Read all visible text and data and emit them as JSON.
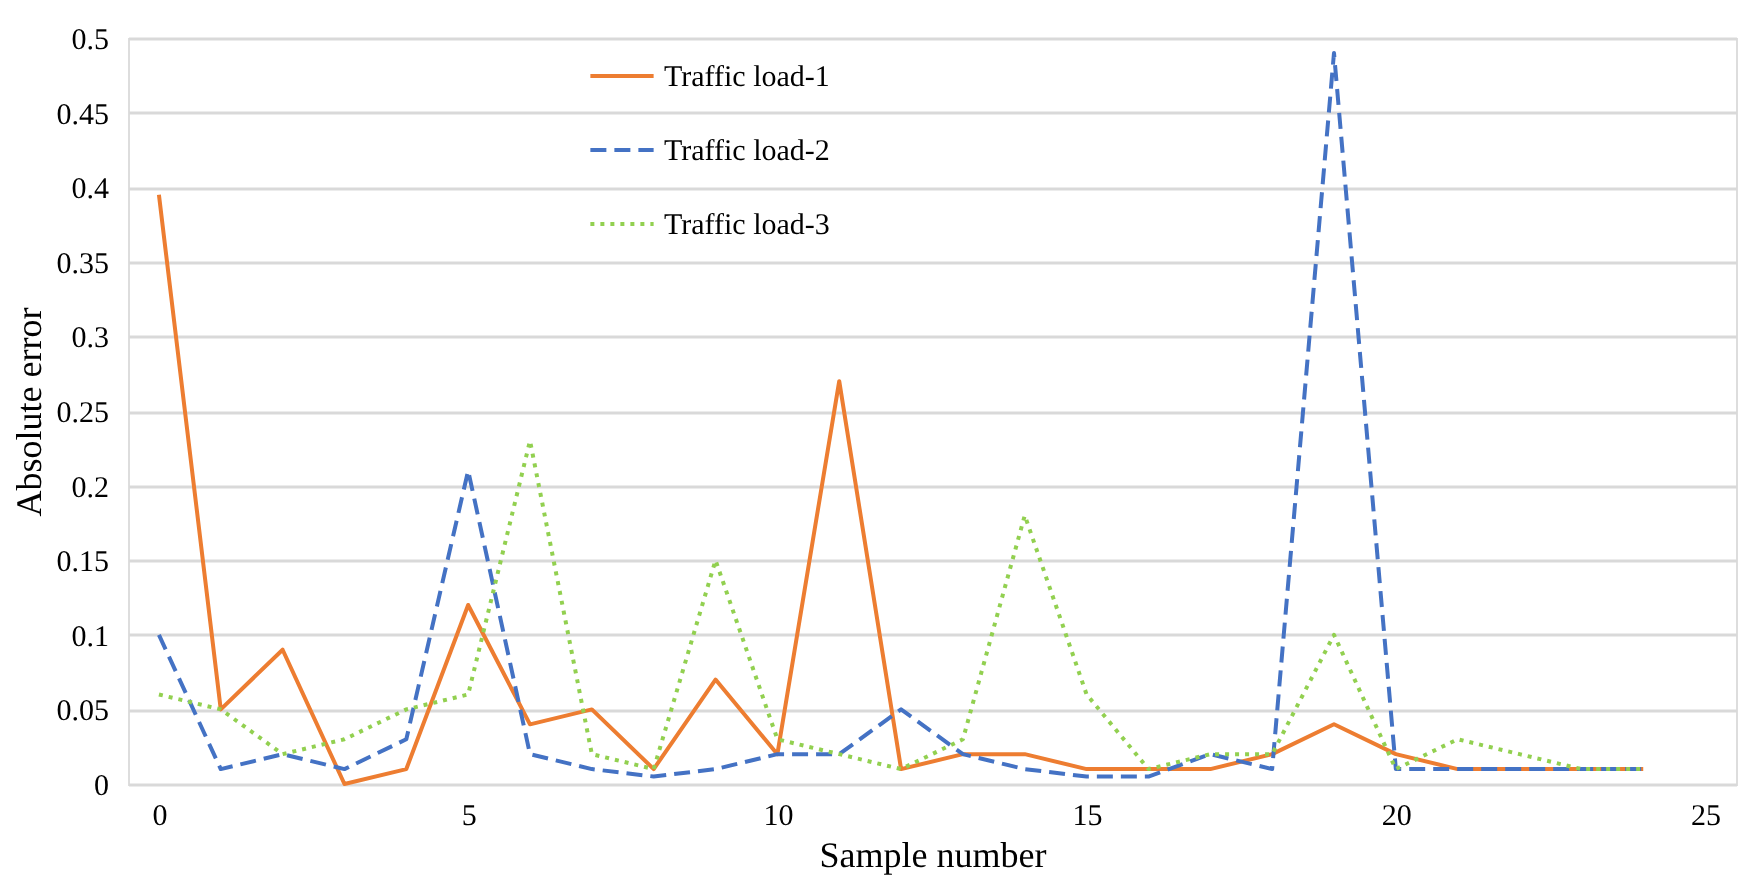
{
  "chart_data": {
    "type": "line",
    "xlabel": "Sample number",
    "ylabel": "Absolute error",
    "x": [
      0,
      1,
      2,
      3,
      4,
      5,
      6,
      7,
      8,
      9,
      10,
      11,
      12,
      13,
      14,
      15,
      16,
      17,
      18,
      19,
      20,
      21,
      22,
      23,
      24
    ],
    "series": [
      {
        "name": "Traffic load-1",
        "color": "#ed7d31",
        "line_style": "solid",
        "values": [
          0.395,
          0.05,
          0.09,
          0,
          0.01,
          0.12,
          0.04,
          0.05,
          0.01,
          0.07,
          0.02,
          0.27,
          0.01,
          0.02,
          0.02,
          0.01,
          0.01,
          0.01,
          0.02,
          0.04,
          0.02,
          0.01,
          0.01,
          0.01,
          0.01
        ]
      },
      {
        "name": "Traffic load-2",
        "color": "#4472c4",
        "line_style": "dashed",
        "values": [
          0.1,
          0.01,
          0.02,
          0.01,
          0.03,
          0.21,
          0.02,
          0.01,
          0.005,
          0.01,
          0.02,
          0.02,
          0.05,
          0.02,
          0.01,
          0.005,
          0.005,
          0.02,
          0.01,
          0.49,
          0.01,
          0.01,
          0.01,
          0.01,
          0.01
        ]
      },
      {
        "name": "Traffic load-3",
        "color": "#92d050",
        "line_style": "dotted",
        "values": [
          0.06,
          0.05,
          0.02,
          0.03,
          0.05,
          0.06,
          0.23,
          0.02,
          0.01,
          0.15,
          0.03,
          0.02,
          0.01,
          0.03,
          0.18,
          0.06,
          0.01,
          0.02,
          0.02,
          0.1,
          0.01,
          0.03,
          0.02,
          0.01,
          0.01
        ]
      }
    ],
    "xlim": [
      -0.5,
      25.5
    ],
    "xticks": [
      0,
      5,
      10,
      15,
      20,
      25
    ],
    "ylim": [
      0,
      0.5
    ],
    "yticks": [
      0,
      0.05,
      0.1,
      0.15,
      0.2,
      0.25,
      0.3,
      0.35,
      0.4,
      0.45,
      0.5
    ],
    "grid": "y",
    "legend": "top",
    "marker": "none"
  }
}
